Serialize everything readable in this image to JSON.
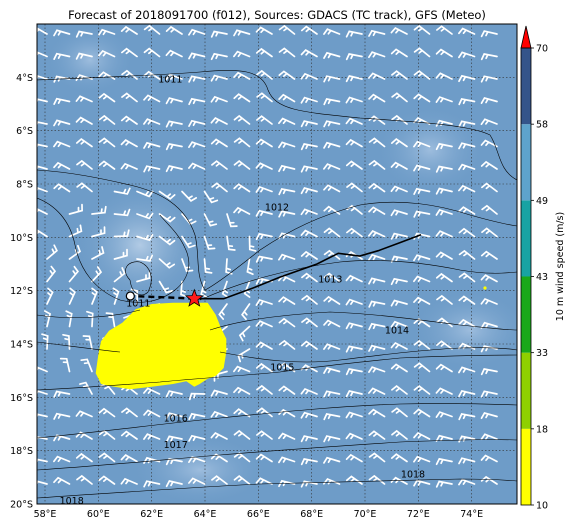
{
  "title": "Forecast of 2018091700 (f012), Sources: GDACS (TC track), GFS (Meteo)",
  "map": {
    "x_ticks": [
      "58°E",
      "60°E",
      "62°E",
      "64°E",
      "66°E",
      "68°E",
      "70°E",
      "72°E",
      "74°E"
    ],
    "y_ticks": [
      "4°S",
      "6°S",
      "8°S",
      "10°S",
      "12°S",
      "14°S",
      "16°S",
      "18°S",
      "20°S"
    ],
    "x_values": [
      58,
      60,
      62,
      64,
      66,
      68,
      70,
      72,
      74
    ],
    "y_values": [
      -4,
      -6,
      -8,
      -10,
      -12,
      -14,
      -16,
      -18,
      -20
    ],
    "lon_range": [
      57.7,
      75.7
    ],
    "lat_range": [
      -20,
      -2
    ],
    "grid": true,
    "ocean_color": "#6e9cc8"
  },
  "isobars": [
    {
      "label": "1011",
      "label_lon": 62.7,
      "label_lat": -4.2
    },
    {
      "label": "1011",
      "label_lon": 61.5,
      "label_lat": -12.6
    },
    {
      "label": "1012",
      "label_lon": 66.7,
      "label_lat": -9.0
    },
    {
      "label": "1013",
      "label_lon": 68.7,
      "label_lat": -11.7
    },
    {
      "label": "1014",
      "label_lon": 71.2,
      "label_lat": -13.6
    },
    {
      "label": "1015",
      "label_lon": 66.9,
      "label_lat": -15.0
    },
    {
      "label": "1016",
      "label_lon": 62.9,
      "label_lat": -16.9
    },
    {
      "label": "1017",
      "label_lon": 62.9,
      "label_lat": -17.9
    },
    {
      "label": "1018",
      "label_lon": 71.8,
      "label_lat": -19.0
    },
    {
      "label": "1018",
      "label_lon": 59.0,
      "label_lat": -20.0
    }
  ],
  "storm_track": {
    "past": [
      [
        72.1,
        -9.9
      ],
      [
        71.3,
        -10.2
      ],
      [
        70.5,
        -10.5
      ],
      [
        69.8,
        -10.7
      ],
      [
        69.0,
        -10.6
      ],
      [
        68.2,
        -11.0
      ],
      [
        66.8,
        -11.5
      ],
      [
        65.8,
        -11.9
      ],
      [
        64.7,
        -12.3
      ],
      [
        63.6,
        -12.3
      ]
    ],
    "forecast": [
      [
        63.6,
        -12.3
      ],
      [
        62.5,
        -12.25
      ],
      [
        61.2,
        -12.2
      ]
    ],
    "current_position": [
      63.6,
      -12.3
    ],
    "forecast_end": [
      61.2,
      -12.2
    ]
  },
  "colorbar": {
    "label": "10 m wind speed (m/s)",
    "ticks": [
      "10",
      "18",
      "33",
      "43",
      "49",
      "58",
      "70"
    ],
    "values": [
      10,
      18,
      33,
      43,
      49,
      58,
      70
    ],
    "colors": [
      "#ffff00",
      "#8fd000",
      "#1aa81a",
      "#18a3a3",
      "#5ea3cc",
      "#34548a",
      "#25255a"
    ],
    "extend_color": "#ff0000"
  },
  "high_wind_area": {
    "color": "#ffff00",
    "outline": [
      [
        61.4,
        -12.7
      ],
      [
        62.0,
        -12.5
      ],
      [
        62.8,
        -12.45
      ],
      [
        63.5,
        -12.45
      ],
      [
        64.1,
        -12.45
      ],
      [
        64.4,
        -12.9
      ],
      [
        64.6,
        -13.4
      ],
      [
        64.8,
        -13.8
      ],
      [
        64.8,
        -14.3
      ],
      [
        64.7,
        -14.9
      ],
      [
        64.4,
        -15.2
      ],
      [
        64.1,
        -15.3
      ],
      [
        63.8,
        -15.5
      ],
      [
        63.6,
        -15.6
      ],
      [
        63.3,
        -15.4
      ],
      [
        62.8,
        -15.5
      ],
      [
        62.0,
        -15.6
      ],
      [
        61.2,
        -15.7
      ],
      [
        60.6,
        -15.6
      ],
      [
        60.1,
        -15.5
      ],
      [
        59.9,
        -15.1
      ],
      [
        60.0,
        -14.4
      ],
      [
        60.1,
        -13.9
      ],
      [
        60.4,
        -13.5
      ],
      [
        60.9,
        -13.2
      ],
      [
        61.4,
        -12.7
      ]
    ]
  }
}
